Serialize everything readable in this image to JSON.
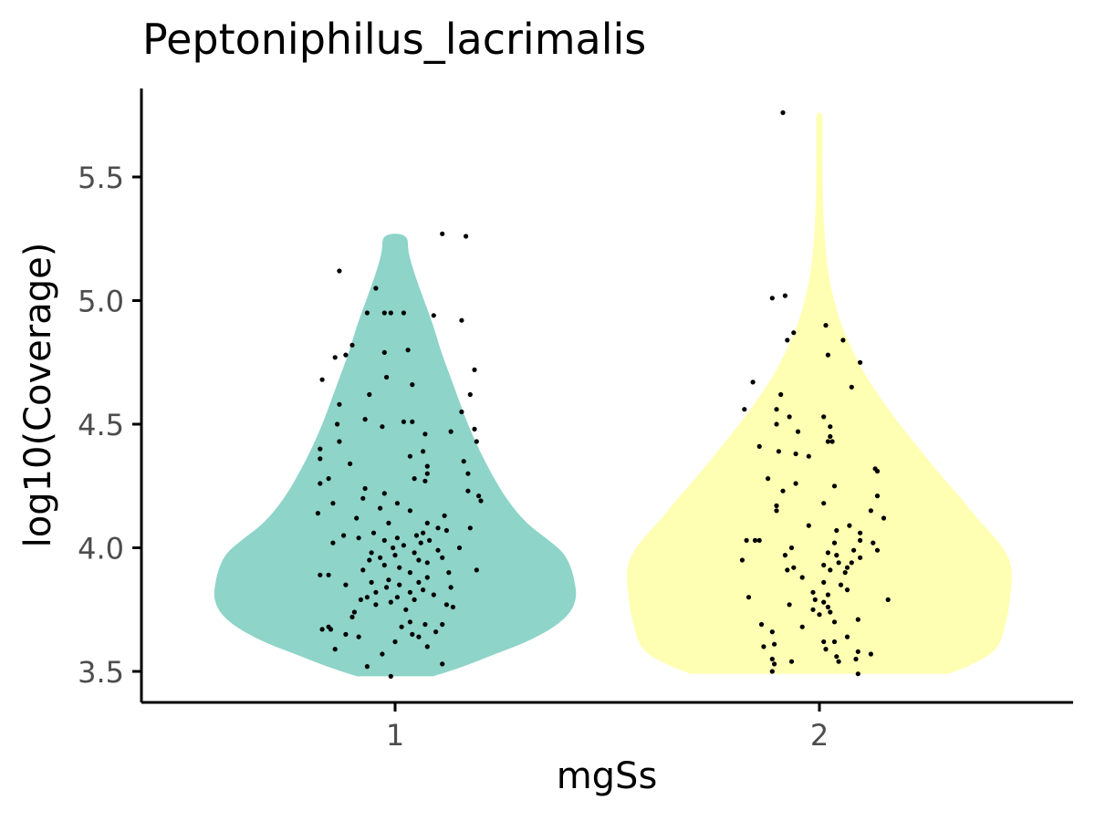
{
  "chart_data": {
    "type": "violin",
    "title": "Peptoniphilus_lacrimalis",
    "xlabel": "mgSs",
    "ylabel": "log10(Coverage)",
    "categories": [
      "1",
      "2"
    ],
    "ylim": [
      3.38,
      5.85
    ],
    "yticks": [
      3.5,
      4.0,
      4.5,
      5.0,
      5.5
    ],
    "ytick_labels": [
      "3.5",
      "4.0",
      "4.5",
      "5.0",
      "5.5"
    ],
    "grid": false,
    "legend": "none",
    "colors": {
      "1": "#8ED4C8",
      "2": "#FFFFB3",
      "points": "#000000",
      "axis": "#000000",
      "tick_text": "#4D4D4D"
    },
    "violins": [
      {
        "category": "1",
        "y_range": [
          3.48,
          5.27
        ],
        "density": [
          [
            3.48,
            0.21
          ],
          [
            3.52,
            0.38
          ],
          [
            3.57,
            0.55
          ],
          [
            3.62,
            0.73
          ],
          [
            3.68,
            0.88
          ],
          [
            3.74,
            0.97
          ],
          [
            3.8,
            1.0
          ],
          [
            3.86,
            0.99
          ],
          [
            3.92,
            0.97
          ],
          [
            3.98,
            0.93
          ],
          [
            4.04,
            0.83
          ],
          [
            4.1,
            0.72
          ],
          [
            4.2,
            0.61
          ],
          [
            4.3,
            0.53
          ],
          [
            4.4,
            0.46
          ],
          [
            4.5,
            0.4
          ],
          [
            4.6,
            0.35
          ],
          [
            4.7,
            0.3
          ],
          [
            4.8,
            0.25
          ],
          [
            4.9,
            0.21
          ],
          [
            5.0,
            0.16
          ],
          [
            5.1,
            0.11
          ],
          [
            5.2,
            0.07
          ],
          [
            5.27,
            0.07
          ]
        ],
        "points": [
          [
            3.48,
            -0.02
          ],
          [
            3.52,
            -0.13
          ],
          [
            3.53,
            0.22
          ],
          [
            3.57,
            -0.06
          ],
          [
            3.59,
            -0.28
          ],
          [
            3.6,
            0.15
          ],
          [
            3.62,
            0.0
          ],
          [
            3.64,
            -0.17
          ],
          [
            3.64,
            0.11
          ],
          [
            3.65,
            -0.23
          ],
          [
            3.65,
            0.08
          ],
          [
            3.66,
            0.19
          ],
          [
            3.67,
            -0.34
          ],
          [
            3.67,
            -0.3
          ],
          [
            3.68,
            0.03
          ],
          [
            3.68,
            -0.31
          ],
          [
            3.69,
            0.22
          ],
          [
            3.69,
            0.14
          ],
          [
            3.7,
            0.07
          ],
          [
            3.72,
            -0.2
          ],
          [
            3.74,
            -0.19
          ],
          [
            3.75,
            0.05
          ],
          [
            3.76,
            0.27
          ],
          [
            3.77,
            0.24
          ],
          [
            3.77,
            -0.09
          ],
          [
            3.78,
            -0.02
          ],
          [
            3.79,
            -0.16
          ],
          [
            3.79,
            0.09
          ],
          [
            3.8,
            0.01
          ],
          [
            3.8,
            -0.13
          ],
          [
            3.81,
            0.18
          ],
          [
            3.82,
            0.07
          ],
          [
            3.82,
            -0.09
          ],
          [
            3.83,
            0.13
          ],
          [
            3.84,
            -0.04
          ],
          [
            3.84,
            0.26
          ],
          [
            3.85,
            -0.23
          ],
          [
            3.85,
            0.02
          ],
          [
            3.86,
            0.11
          ],
          [
            3.86,
            -0.11
          ],
          [
            3.87,
            -0.03
          ],
          [
            3.88,
            0.15
          ],
          [
            3.89,
            -0.35
          ],
          [
            3.89,
            -0.31
          ],
          [
            3.9,
            0.25
          ],
          [
            3.9,
            0.07
          ],
          [
            3.91,
            -0.15
          ],
          [
            3.91,
            0.38
          ],
          [
            3.92,
            0.02
          ],
          [
            3.93,
            -0.05
          ],
          [
            3.94,
            0.15
          ],
          [
            3.95,
            -0.12
          ],
          [
            3.95,
            0.11
          ],
          [
            3.96,
            0.22
          ],
          [
            3.96,
            -0.07
          ],
          [
            3.97,
            0.0
          ],
          [
            3.98,
            -0.11
          ],
          [
            3.98,
            0.09
          ],
          [
            3.99,
            0.2
          ],
          [
            4.0,
            -0.01
          ],
          [
            4.0,
            0.3
          ],
          [
            4.01,
            0.04
          ],
          [
            4.02,
            -0.29
          ],
          [
            4.02,
            0.12
          ],
          [
            4.03,
            -0.05
          ],
          [
            4.03,
            0.16
          ],
          [
            4.04,
            -0.17
          ],
          [
            4.04,
            0.01
          ],
          [
            4.05,
            -0.24
          ],
          [
            4.05,
            0.1
          ],
          [
            4.06,
            -0.1
          ],
          [
            4.06,
            0.13
          ],
          [
            4.07,
            0.24
          ],
          [
            4.08,
            0.2
          ],
          [
            4.08,
            0.35
          ],
          [
            4.1,
            0.15
          ],
          [
            4.1,
            -0.03
          ],
          [
            4.12,
            -0.18
          ],
          [
            4.13,
            0.23
          ],
          [
            4.14,
            -0.36
          ],
          [
            4.15,
            0.07
          ],
          [
            4.16,
            -0.07
          ],
          [
            4.18,
            -0.29
          ],
          [
            4.18,
            0.01
          ],
          [
            4.19,
            0.4
          ],
          [
            4.2,
            -0.15
          ],
          [
            4.21,
            0.39
          ],
          [
            4.22,
            -0.05
          ],
          [
            4.23,
            0.34
          ],
          [
            4.24,
            -0.14
          ],
          [
            4.26,
            -0.35
          ],
          [
            4.27,
            0.14
          ],
          [
            4.28,
            0.09
          ],
          [
            4.28,
            -0.31
          ],
          [
            4.3,
            0.34
          ],
          [
            4.3,
            0.15
          ],
          [
            4.33,
            0.15
          ],
          [
            4.34,
            -0.21
          ],
          [
            4.35,
            0.32
          ],
          [
            4.36,
            -0.35
          ],
          [
            4.37,
            0.07
          ],
          [
            4.39,
            0.13
          ],
          [
            4.4,
            -0.35
          ],
          [
            4.43,
            0.38
          ],
          [
            4.43,
            -0.26
          ],
          [
            4.46,
            0.14
          ],
          [
            4.47,
            0.26
          ],
          [
            4.48,
            0.37
          ],
          [
            4.49,
            -0.06
          ],
          [
            4.5,
            -0.27
          ],
          [
            4.51,
            0.04
          ],
          [
            4.51,
            0.08
          ],
          [
            4.52,
            -0.14
          ],
          [
            4.55,
            0.31
          ],
          [
            4.58,
            -0.26
          ],
          [
            4.62,
            -0.12
          ],
          [
            4.62,
            0.35
          ],
          [
            4.66,
            0.08
          ],
          [
            4.68,
            -0.34
          ],
          [
            4.69,
            -0.04
          ],
          [
            4.72,
            0.37
          ],
          [
            4.77,
            -0.28
          ],
          [
            4.78,
            -0.23
          ],
          [
            4.79,
            -0.05
          ],
          [
            4.8,
            0.06
          ],
          [
            4.82,
            -0.2
          ],
          [
            4.92,
            0.31
          ],
          [
            4.94,
            0.18
          ],
          [
            4.95,
            -0.05
          ],
          [
            4.95,
            0.04
          ],
          [
            4.95,
            -0.02
          ],
          [
            4.95,
            -0.13
          ],
          [
            5.05,
            -0.09
          ],
          [
            5.12,
            -0.26
          ],
          [
            5.26,
            0.33
          ],
          [
            5.27,
            0.22
          ]
        ]
      },
      {
        "category": "2",
        "y_range": [
          3.49,
          5.76
        ],
        "density": [
          [
            3.49,
            0.71
          ],
          [
            3.52,
            0.82
          ],
          [
            3.57,
            0.95
          ],
          [
            3.62,
            1.0
          ],
          [
            3.68,
            1.02
          ],
          [
            3.74,
            1.04
          ],
          [
            3.8,
            1.05
          ],
          [
            3.86,
            1.06
          ],
          [
            3.92,
            1.06
          ],
          [
            3.98,
            1.03
          ],
          [
            4.04,
            0.97
          ],
          [
            4.1,
            0.89
          ],
          [
            4.2,
            0.78
          ],
          [
            4.3,
            0.66
          ],
          [
            4.4,
            0.55
          ],
          [
            4.5,
            0.44
          ],
          [
            4.6,
            0.34
          ],
          [
            4.7,
            0.25
          ],
          [
            4.8,
            0.18
          ],
          [
            4.9,
            0.12
          ],
          [
            5.0,
            0.08
          ],
          [
            5.1,
            0.05
          ],
          [
            5.2,
            0.035
          ],
          [
            5.3,
            0.025
          ],
          [
            5.4,
            0.02
          ],
          [
            5.5,
            0.018
          ],
          [
            5.6,
            0.017
          ],
          [
            5.7,
            0.017
          ],
          [
            5.76,
            0.017
          ]
        ],
        "points": [
          [
            3.49,
            0.18
          ],
          [
            3.5,
            -0.22
          ],
          [
            3.53,
            -0.21
          ],
          [
            3.54,
            0.09
          ],
          [
            3.54,
            -0.13
          ],
          [
            3.55,
            0.17
          ],
          [
            3.55,
            -0.22
          ],
          [
            3.56,
            0.08
          ],
          [
            3.57,
            0.24
          ],
          [
            3.58,
            0.18
          ],
          [
            3.59,
            0.03
          ],
          [
            3.6,
            -0.26
          ],
          [
            3.61,
            -0.21
          ],
          [
            3.62,
            0.02
          ],
          [
            3.62,
            0.07
          ],
          [
            3.64,
            0.13
          ],
          [
            3.66,
            -0.22
          ],
          [
            3.68,
            -0.08
          ],
          [
            3.69,
            -0.27
          ],
          [
            3.7,
            0.07
          ],
          [
            3.71,
            0.18
          ],
          [
            3.73,
            0.0
          ],
          [
            3.74,
            0.05
          ],
          [
            3.75,
            -0.03
          ],
          [
            3.76,
            0.04
          ],
          [
            3.77,
            -0.14
          ],
          [
            3.78,
            0.02
          ],
          [
            3.79,
            0.32
          ],
          [
            3.79,
            -0.02
          ],
          [
            3.8,
            -0.33
          ],
          [
            3.81,
            0.04
          ],
          [
            3.82,
            -0.03
          ],
          [
            3.83,
            0.13
          ],
          [
            3.85,
            0.1
          ],
          [
            3.86,
            0.02
          ],
          [
            3.88,
            -0.08
          ],
          [
            3.9,
            0.12
          ],
          [
            3.91,
            -0.15
          ],
          [
            3.91,
            0.05
          ],
          [
            3.92,
            0.13
          ],
          [
            3.92,
            -0.12
          ],
          [
            3.93,
            0.02
          ],
          [
            3.94,
            0.15
          ],
          [
            3.94,
            0.09
          ],
          [
            3.95,
            -0.36
          ],
          [
            3.96,
            0.19
          ],
          [
            3.97,
            0.08
          ],
          [
            3.97,
            -0.16
          ],
          [
            3.98,
            0.04
          ],
          [
            3.99,
            0.16
          ],
          [
            3.99,
            0.27
          ],
          [
            4.0,
            -0.13
          ],
          [
            4.02,
            0.25
          ],
          [
            4.02,
            0.07
          ],
          [
            4.03,
            -0.3
          ],
          [
            4.03,
            -0.28
          ],
          [
            4.03,
            0.19
          ],
          [
            4.03,
            -0.34
          ],
          [
            4.06,
            0.19
          ],
          [
            4.07,
            0.08
          ],
          [
            4.09,
            0.14
          ],
          [
            4.09,
            -0.05
          ],
          [
            4.12,
            0.3
          ],
          [
            4.15,
            0.24
          ],
          [
            4.15,
            -0.2
          ],
          [
            4.17,
            -0.2
          ],
          [
            4.18,
            0.02
          ],
          [
            4.21,
            0.27
          ],
          [
            4.23,
            -0.17
          ],
          [
            4.25,
            0.07
          ],
          [
            4.26,
            -0.11
          ],
          [
            4.28,
            -0.24
          ],
          [
            4.31,
            0.27
          ],
          [
            4.32,
            0.26
          ],
          [
            4.37,
            -0.05
          ],
          [
            4.38,
            -0.11
          ],
          [
            4.39,
            -0.19
          ],
          [
            4.41,
            -0.28
          ],
          [
            4.43,
            0.04
          ],
          [
            4.43,
            0.06
          ],
          [
            4.45,
            0.05
          ],
          [
            4.47,
            -0.1
          ],
          [
            4.49,
            0.05
          ],
          [
            4.5,
            -0.2
          ],
          [
            4.53,
            -0.14
          ],
          [
            4.53,
            0.02
          ],
          [
            4.56,
            -0.2
          ],
          [
            4.56,
            -0.35
          ],
          [
            4.62,
            -0.18
          ],
          [
            4.65,
            0.15
          ],
          [
            4.67,
            -0.31
          ],
          [
            4.75,
            0.19
          ],
          [
            4.78,
            0.04
          ],
          [
            4.84,
            -0.15
          ],
          [
            4.84,
            0.11
          ],
          [
            4.87,
            -0.12
          ],
          [
            4.9,
            0.03
          ],
          [
            5.01,
            -0.22
          ],
          [
            5.02,
            -0.16
          ],
          [
            5.76,
            -0.17
          ]
        ]
      }
    ]
  }
}
